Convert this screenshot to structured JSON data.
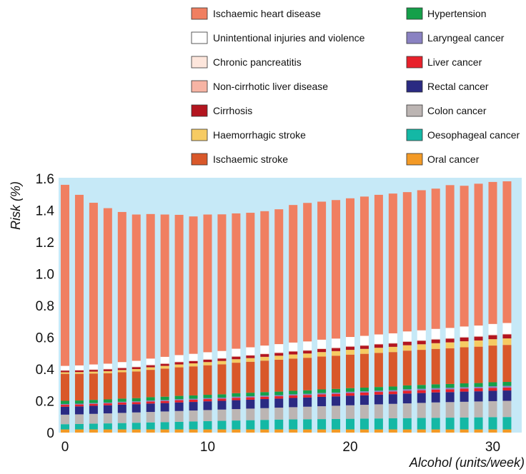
{
  "chart_data": {
    "type": "bar",
    "stacked": true,
    "ylabel": "Risk (%)",
    "xlabel": "Alcohol (units/week)",
    "ylim": [
      0,
      1.6
    ],
    "xlim": [
      0,
      31
    ],
    "y_ticks": [
      "0",
      "0.2",
      "0.4",
      "0.6",
      "0.8",
      "1.0",
      "1.2",
      "1.4",
      "1.6"
    ],
    "x_ticks": [
      "0",
      "10",
      "20",
      "30"
    ],
    "grid": false,
    "legend_position": "top",
    "x": [
      0,
      1,
      2,
      3,
      4,
      5,
      6,
      7,
      8,
      9,
      10,
      11,
      12,
      13,
      14,
      15,
      16,
      17,
      18,
      19,
      20,
      21,
      22,
      23,
      24,
      25,
      26,
      27,
      28,
      29,
      30,
      31
    ],
    "series": [
      {
        "name": "Oral cancer",
        "color": "#f39a26",
        "values": [
          0.02,
          0.02,
          0.02,
          0.02,
          0.02,
          0.02,
          0.02,
          0.02,
          0.02,
          0.02,
          0.02,
          0.02,
          0.02,
          0.02,
          0.02,
          0.02,
          0.02,
          0.02,
          0.02,
          0.02,
          0.02,
          0.02,
          0.02,
          0.02,
          0.02,
          0.02,
          0.02,
          0.02,
          0.02,
          0.02,
          0.02,
          0.02
        ]
      },
      {
        "name": "Oesophageal cancer",
        "color": "#14b8a5",
        "values": [
          0.033,
          0.034,
          0.036,
          0.038,
          0.04,
          0.042,
          0.044,
          0.046,
          0.048,
          0.05,
          0.052,
          0.054,
          0.056,
          0.058,
          0.06,
          0.062,
          0.063,
          0.064,
          0.065,
          0.066,
          0.067,
          0.068,
          0.069,
          0.07,
          0.071,
          0.072,
          0.073,
          0.074,
          0.075,
          0.076,
          0.077,
          0.078
        ]
      },
      {
        "name": "Colon cancer",
        "color": "#bcb5b3",
        "values": [
          0.06,
          0.061,
          0.062,
          0.063,
          0.064,
          0.065,
          0.066,
          0.067,
          0.068,
          0.069,
          0.07,
          0.071,
          0.072,
          0.073,
          0.074,
          0.075,
          0.077,
          0.079,
          0.081,
          0.083,
          0.085,
          0.087,
          0.089,
          0.091,
          0.093,
          0.095,
          0.097,
          0.098,
          0.099,
          0.1,
          0.101,
          0.102
        ]
      },
      {
        "name": "Rectal cancer",
        "color": "#2a2a82",
        "values": [
          0.05,
          0.05,
          0.051,
          0.051,
          0.052,
          0.052,
          0.053,
          0.053,
          0.054,
          0.054,
          0.055,
          0.055,
          0.056,
          0.056,
          0.057,
          0.057,
          0.058,
          0.058,
          0.059,
          0.059,
          0.06,
          0.06,
          0.061,
          0.061,
          0.062,
          0.062,
          0.063,
          0.063,
          0.064,
          0.064,
          0.065,
          0.065
        ]
      },
      {
        "name": "Liver cancer",
        "color": "#e8212b",
        "values": [
          0.012,
          0.012,
          0.012,
          0.012,
          0.013,
          0.013,
          0.013,
          0.013,
          0.014,
          0.014,
          0.014,
          0.014,
          0.015,
          0.015,
          0.015,
          0.015,
          0.016,
          0.016,
          0.016,
          0.016,
          0.017,
          0.017,
          0.017,
          0.017,
          0.018,
          0.018,
          0.018,
          0.018,
          0.019,
          0.019,
          0.019,
          0.019
        ]
      },
      {
        "name": "Laryngeal cancer",
        "color": "#8a82c2",
        "values": [
          0.005,
          0.005,
          0.005,
          0.005,
          0.005,
          0.005,
          0.006,
          0.006,
          0.006,
          0.006,
          0.006,
          0.006,
          0.007,
          0.007,
          0.007,
          0.007,
          0.007,
          0.007,
          0.008,
          0.008,
          0.008,
          0.008,
          0.008,
          0.008,
          0.009,
          0.009,
          0.009,
          0.009,
          0.009,
          0.009,
          0.01,
          0.01
        ]
      },
      {
        "name": "Hypertension",
        "color": "#15a04a",
        "values": [
          0.02,
          0.02,
          0.02,
          0.02,
          0.02,
          0.02,
          0.021,
          0.021,
          0.021,
          0.021,
          0.021,
          0.021,
          0.022,
          0.022,
          0.022,
          0.022,
          0.022,
          0.022,
          0.023,
          0.023,
          0.023,
          0.023,
          0.023,
          0.023,
          0.024,
          0.024,
          0.024,
          0.024,
          0.024,
          0.024,
          0.025,
          0.025
        ]
      },
      {
        "name": "Ischaemic stroke",
        "color": "#d9582a",
        "values": [
          0.17,
          0.168,
          0.166,
          0.165,
          0.166,
          0.168,
          0.172,
          0.177,
          0.18,
          0.183,
          0.186,
          0.189,
          0.192,
          0.195,
          0.198,
          0.201,
          0.203,
          0.205,
          0.207,
          0.209,
          0.211,
          0.213,
          0.215,
          0.217,
          0.219,
          0.221,
          0.223,
          0.225,
          0.227,
          0.229,
          0.231,
          0.233
        ]
      },
      {
        "name": "Haemorrhagic stroke",
        "color": "#f6cb63",
        "values": [
          0.01,
          0.011,
          0.012,
          0.013,
          0.014,
          0.015,
          0.016,
          0.017,
          0.018,
          0.019,
          0.02,
          0.021,
          0.022,
          0.023,
          0.024,
          0.025,
          0.026,
          0.027,
          0.028,
          0.029,
          0.03,
          0.031,
          0.032,
          0.033,
          0.034,
          0.035,
          0.036,
          0.037,
          0.038,
          0.039,
          0.04,
          0.041
        ]
      },
      {
        "name": "Cirrhosis",
        "color": "#b3151f",
        "values": [
          0.01,
          0.01,
          0.011,
          0.011,
          0.012,
          0.012,
          0.013,
          0.013,
          0.014,
          0.014,
          0.015,
          0.015,
          0.016,
          0.016,
          0.017,
          0.017,
          0.018,
          0.018,
          0.019,
          0.019,
          0.02,
          0.02,
          0.021,
          0.021,
          0.022,
          0.022,
          0.023,
          0.023,
          0.024,
          0.024,
          0.025,
          0.025
        ]
      },
      {
        "name": "Non-cirrhotic liver disease",
        "color": "#f7b4a4",
        "values": [
          0.002,
          0.002,
          0.002,
          0.002,
          0.002,
          0.002,
          0.002,
          0.002,
          0.002,
          0.002,
          0.002,
          0.002,
          0.002,
          0.002,
          0.002,
          0.002,
          0.002,
          0.002,
          0.002,
          0.002,
          0.002,
          0.002,
          0.002,
          0.002,
          0.002,
          0.002,
          0.002,
          0.002,
          0.002,
          0.002,
          0.002,
          0.002
        ]
      },
      {
        "name": "Chronic pancreatitis",
        "color": "#fde6dc",
        "values": [
          0.003,
          0.003,
          0.003,
          0.003,
          0.003,
          0.003,
          0.003,
          0.003,
          0.003,
          0.003,
          0.003,
          0.003,
          0.003,
          0.003,
          0.003,
          0.003,
          0.003,
          0.003,
          0.003,
          0.003,
          0.003,
          0.003,
          0.003,
          0.003,
          0.003,
          0.003,
          0.003,
          0.003,
          0.003,
          0.003,
          0.003,
          0.003
        ]
      },
      {
        "name": "Unintentional injuries and violence",
        "color": "#ffffff",
        "values": [
          0.025,
          0.027,
          0.029,
          0.031,
          0.033,
          0.035,
          0.037,
          0.039,
          0.04,
          0.041,
          0.042,
          0.043,
          0.045,
          0.047,
          0.049,
          0.051,
          0.052,
          0.053,
          0.054,
          0.055,
          0.056,
          0.057,
          0.058,
          0.059,
          0.06,
          0.061,
          0.062,
          0.063,
          0.064,
          0.065,
          0.066,
          0.067
        ]
      },
      {
        "name": "Ischaemic heart disease",
        "color": "#f07f61",
        "values": [
          1.14,
          1.074,
          1.018,
          0.979,
          0.945,
          0.921,
          0.91,
          0.896,
          0.883,
          0.865,
          0.867,
          0.86,
          0.852,
          0.847,
          0.846,
          0.849,
          0.866,
          0.872,
          0.869,
          0.872,
          0.873,
          0.877,
          0.879,
          0.88,
          0.877,
          0.882,
          0.883,
          0.899,
          0.886,
          0.893,
          0.894,
          0.892
        ]
      }
    ]
  }
}
